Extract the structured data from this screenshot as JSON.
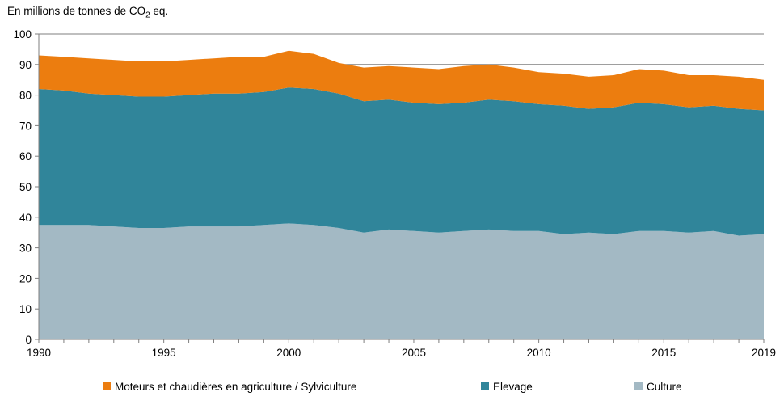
{
  "header": {
    "title_prefix": "En millions de tonnes de CO",
    "title_sub": "2",
    "title_suffix": " eq."
  },
  "colors": {
    "background": "#FFFFFF",
    "axis": "#7F7F7F",
    "grid": "#7F7F7F",
    "text": "#000000",
    "orange": "#EC7D0F",
    "teal": "#30859A",
    "gray_blue": "#A3B9C4"
  },
  "legend": {
    "position": "bottom",
    "items": [
      {
        "label": "Moteurs et chaudières en agriculture / Sylviculture",
        "color": "#EC7D0F"
      },
      {
        "label": "Elevage",
        "color": "#30859A"
      },
      {
        "label": "Culture",
        "color": "#A3B9C4"
      }
    ]
  },
  "chart_data": {
    "type": "area",
    "stacked": true,
    "title": "En millions de tonnes de CO2 eq.",
    "xlabel": "",
    "ylabel": "En millions de tonnes de CO2 eq.",
    "ylim": [
      0,
      100
    ],
    "yticks": [
      0,
      10,
      20,
      30,
      40,
      50,
      60,
      70,
      80,
      90,
      100
    ],
    "xticks": [
      1990,
      1995,
      2000,
      2005,
      2010,
      2015,
      2019
    ],
    "grid": "horizontal",
    "legend_position": "bottom",
    "x": [
      1990,
      1991,
      1992,
      1993,
      1994,
      1995,
      1996,
      1997,
      1998,
      1999,
      2000,
      2001,
      2002,
      2003,
      2004,
      2005,
      2006,
      2007,
      2008,
      2009,
      2010,
      2011,
      2012,
      2013,
      2014,
      2015,
      2016,
      2017,
      2018,
      2019
    ],
    "series": [
      {
        "id": "culture",
        "name": "Culture",
        "color": "#A3B9C4",
        "values": [
          37.5,
          37.5,
          37.5,
          37,
          36.5,
          36.5,
          37,
          37,
          37,
          37.5,
          38,
          37.5,
          36.5,
          35,
          36,
          35.5,
          35,
          35.5,
          36,
          35.5,
          35.5,
          34.5,
          35,
          34.5,
          35.5,
          35.5,
          35,
          35.5,
          34,
          34.5
        ]
      },
      {
        "id": "elevage",
        "name": "Elevage",
        "color": "#30859A",
        "values": [
          44.5,
          44,
          43,
          43,
          43,
          43,
          43,
          43.5,
          43.5,
          43.5,
          44.5,
          44.5,
          44,
          43,
          42.5,
          42,
          42,
          42,
          42.5,
          42.5,
          41.5,
          42,
          40.5,
          41.5,
          42,
          41.5,
          41,
          41,
          41.5,
          40.5
        ]
      },
      {
        "id": "moteurs-et-chaudieres",
        "name": "Moteurs et chaudières en agriculture / Sylviculture",
        "color": "#EC7D0F",
        "values": [
          11,
          11,
          11.5,
          11.5,
          11.5,
          11.5,
          11.5,
          11.5,
          12,
          11.5,
          12,
          11.5,
          10,
          11,
          11,
          11.5,
          11.5,
          12,
          11.5,
          11,
          10.5,
          10.5,
          10.5,
          10.5,
          11,
          11,
          10.5,
          10,
          10.5,
          10
        ]
      }
    ]
  }
}
